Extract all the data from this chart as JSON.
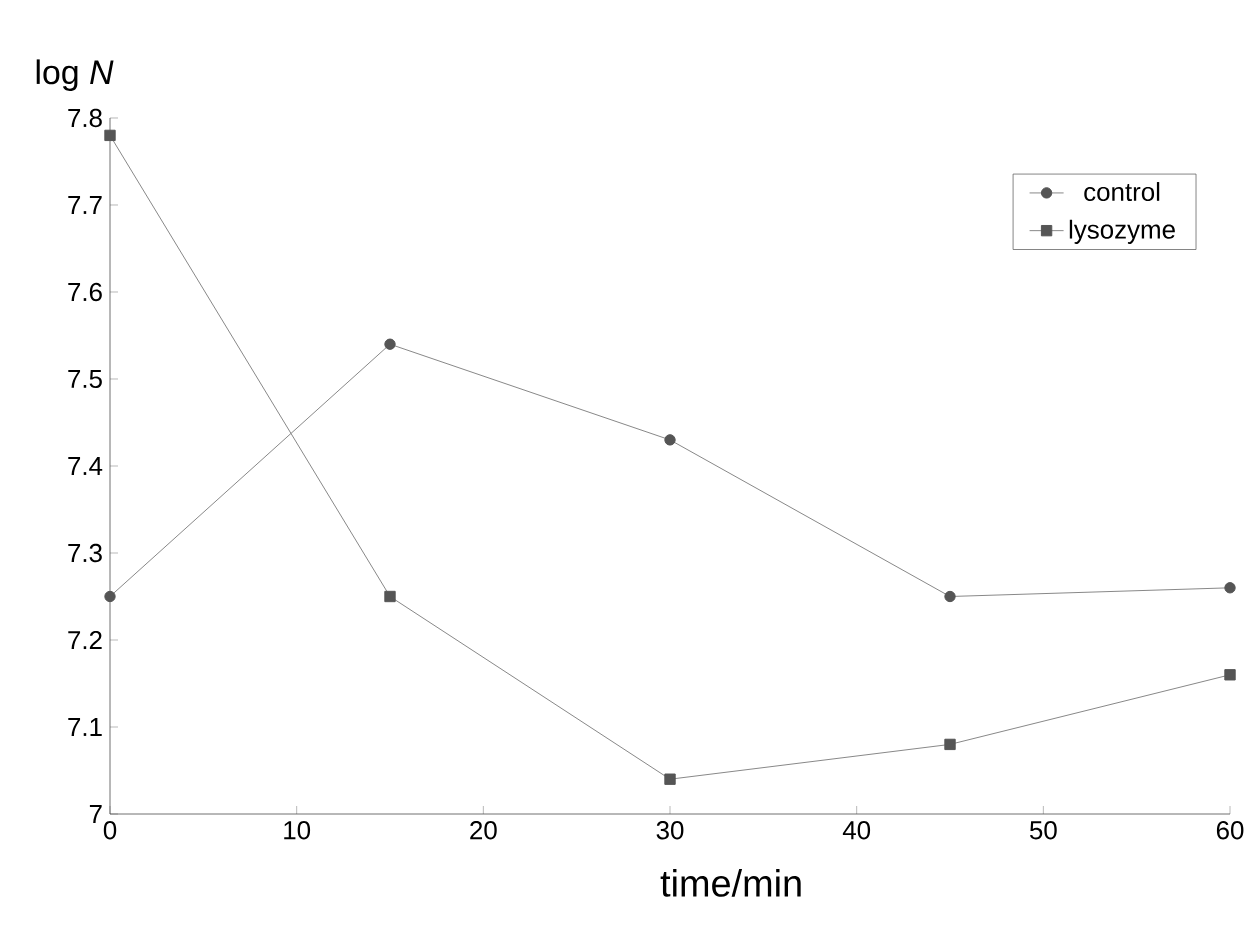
{
  "chart_data": {
    "type": "line",
    "xlabel": "time/min",
    "ylabel": "log *N*",
    "x": [
      0,
      15,
      30,
      45,
      60
    ],
    "series": [
      {
        "name": "control",
        "color": "#555555",
        "marker": "circle",
        "values": [
          7.25,
          7.54,
          7.43,
          7.25,
          7.26
        ]
      },
      {
        "name": "lysozyme",
        "color": "#555555",
        "marker": "square",
        "values": [
          7.78,
          7.25,
          7.04,
          7.08,
          7.16
        ]
      }
    ],
    "xlim": [
      0,
      60
    ],
    "xticks": [
      0,
      10,
      20,
      30,
      40,
      50,
      60
    ],
    "ylim": [
      7,
      7.8
    ],
    "yticks": [
      7,
      7.1,
      7.2,
      7.3,
      7.4,
      7.5,
      7.6,
      7.7,
      7.8
    ],
    "legend": "top right",
    "line_style": "solid",
    "grid": false
  }
}
